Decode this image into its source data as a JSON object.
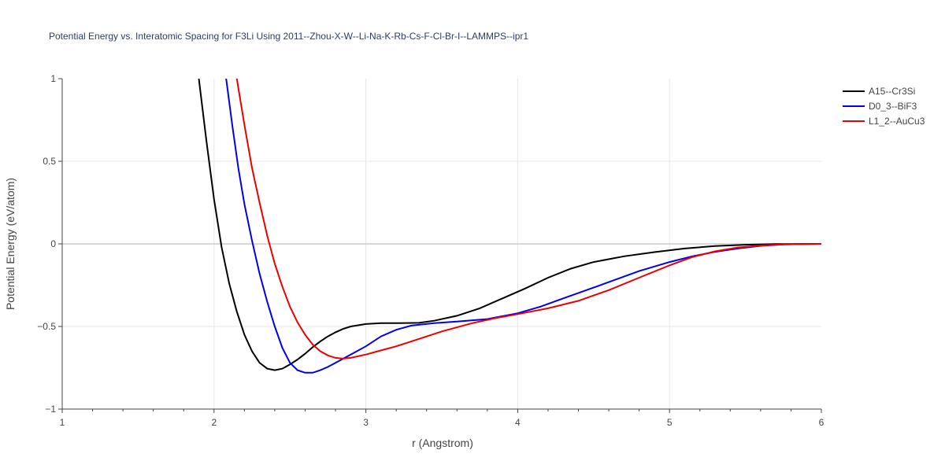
{
  "chart_data": {
    "type": "line",
    "title": "Potential Energy vs. Interatomic Spacing for F3Li Using 2011--Zhou-X-W--Li-Na-K-Rb-Cs-F-Cl-Br-I--LAMMPS--ipr1",
    "xlabel": "r (Angstrom)",
    "ylabel": "Potential Energy (eV/atom)",
    "xlim": [
      1,
      6
    ],
    "ylim": [
      -1,
      1
    ],
    "x_ticks": [
      "1",
      "2",
      "3",
      "4",
      "5",
      "6"
    ],
    "y_ticks": [
      "1",
      "0.5",
      "0",
      "−0.5",
      "−1"
    ],
    "grid": true,
    "legend_position": "top-right",
    "series": [
      {
        "name": "A15--Cr3Si",
        "color": "#000000",
        "points": [
          [
            1.9,
            1.0
          ],
          [
            1.95,
            0.62
          ],
          [
            2.0,
            0.27
          ],
          [
            2.05,
            -0.02
          ],
          [
            2.1,
            -0.24
          ],
          [
            2.15,
            -0.41
          ],
          [
            2.2,
            -0.55
          ],
          [
            2.25,
            -0.65
          ],
          [
            2.3,
            -0.72
          ],
          [
            2.35,
            -0.755
          ],
          [
            2.4,
            -0.765
          ],
          [
            2.45,
            -0.755
          ],
          [
            2.5,
            -0.73
          ],
          [
            2.55,
            -0.7
          ],
          [
            2.6,
            -0.665
          ],
          [
            2.65,
            -0.625
          ],
          [
            2.7,
            -0.59
          ],
          [
            2.75,
            -0.56
          ],
          [
            2.8,
            -0.535
          ],
          [
            2.85,
            -0.515
          ],
          [
            2.9,
            -0.5
          ],
          [
            3.0,
            -0.485
          ],
          [
            3.1,
            -0.48
          ],
          [
            3.2,
            -0.48
          ],
          [
            3.35,
            -0.478
          ],
          [
            3.45,
            -0.465
          ],
          [
            3.6,
            -0.435
          ],
          [
            3.75,
            -0.39
          ],
          [
            3.9,
            -0.33
          ],
          [
            4.05,
            -0.27
          ],
          [
            4.2,
            -0.205
          ],
          [
            4.35,
            -0.15
          ],
          [
            4.5,
            -0.11
          ],
          [
            4.7,
            -0.075
          ],
          [
            4.9,
            -0.05
          ],
          [
            5.1,
            -0.028
          ],
          [
            5.3,
            -0.013
          ],
          [
            5.5,
            -0.005
          ],
          [
            5.7,
            -0.001
          ],
          [
            6.0,
            0.0
          ]
        ]
      },
      {
        "name": "D0_3--BiF3",
        "color": "#0000ee",
        "points": [
          [
            2.08,
            1.0
          ],
          [
            2.12,
            0.72
          ],
          [
            2.16,
            0.46
          ],
          [
            2.2,
            0.24
          ],
          [
            2.25,
            0.02
          ],
          [
            2.3,
            -0.18
          ],
          [
            2.35,
            -0.35
          ],
          [
            2.4,
            -0.5
          ],
          [
            2.45,
            -0.63
          ],
          [
            2.5,
            -0.72
          ],
          [
            2.55,
            -0.765
          ],
          [
            2.6,
            -0.78
          ],
          [
            2.65,
            -0.78
          ],
          [
            2.7,
            -0.765
          ],
          [
            2.75,
            -0.745
          ],
          [
            2.8,
            -0.72
          ],
          [
            2.9,
            -0.67
          ],
          [
            3.0,
            -0.62
          ],
          [
            3.1,
            -0.56
          ],
          [
            3.2,
            -0.52
          ],
          [
            3.3,
            -0.495
          ],
          [
            3.45,
            -0.48
          ],
          [
            3.6,
            -0.47
          ],
          [
            3.8,
            -0.455
          ],
          [
            4.0,
            -0.42
          ],
          [
            4.15,
            -0.38
          ],
          [
            4.3,
            -0.33
          ],
          [
            4.5,
            -0.265
          ],
          [
            4.65,
            -0.215
          ],
          [
            4.8,
            -0.165
          ],
          [
            5.0,
            -0.11
          ],
          [
            5.15,
            -0.075
          ],
          [
            5.3,
            -0.048
          ],
          [
            5.45,
            -0.028
          ],
          [
            5.6,
            -0.012
          ],
          [
            5.75,
            -0.004
          ],
          [
            5.9,
            -0.001
          ],
          [
            6.0,
            0.0
          ]
        ]
      },
      {
        "name": "L1_2--AuCu3",
        "color": "#ee0000",
        "points": [
          [
            2.15,
            1.0
          ],
          [
            2.2,
            0.72
          ],
          [
            2.25,
            0.46
          ],
          [
            2.3,
            0.25
          ],
          [
            2.35,
            0.05
          ],
          [
            2.4,
            -0.12
          ],
          [
            2.45,
            -0.26
          ],
          [
            2.5,
            -0.38
          ],
          [
            2.55,
            -0.475
          ],
          [
            2.6,
            -0.55
          ],
          [
            2.65,
            -0.61
          ],
          [
            2.7,
            -0.65
          ],
          [
            2.75,
            -0.675
          ],
          [
            2.8,
            -0.69
          ],
          [
            2.85,
            -0.695
          ],
          [
            2.9,
            -0.69
          ],
          [
            3.0,
            -0.67
          ],
          [
            3.1,
            -0.645
          ],
          [
            3.2,
            -0.62
          ],
          [
            3.35,
            -0.575
          ],
          [
            3.5,
            -0.53
          ],
          [
            3.7,
            -0.48
          ],
          [
            3.85,
            -0.45
          ],
          [
            4.0,
            -0.425
          ],
          [
            4.2,
            -0.39
          ],
          [
            4.4,
            -0.345
          ],
          [
            4.6,
            -0.28
          ],
          [
            4.8,
            -0.205
          ],
          [
            5.0,
            -0.13
          ],
          [
            5.15,
            -0.08
          ],
          [
            5.3,
            -0.045
          ],
          [
            5.45,
            -0.022
          ],
          [
            5.6,
            -0.01
          ],
          [
            5.75,
            -0.003
          ],
          [
            6.0,
            0.0
          ]
        ]
      }
    ]
  }
}
